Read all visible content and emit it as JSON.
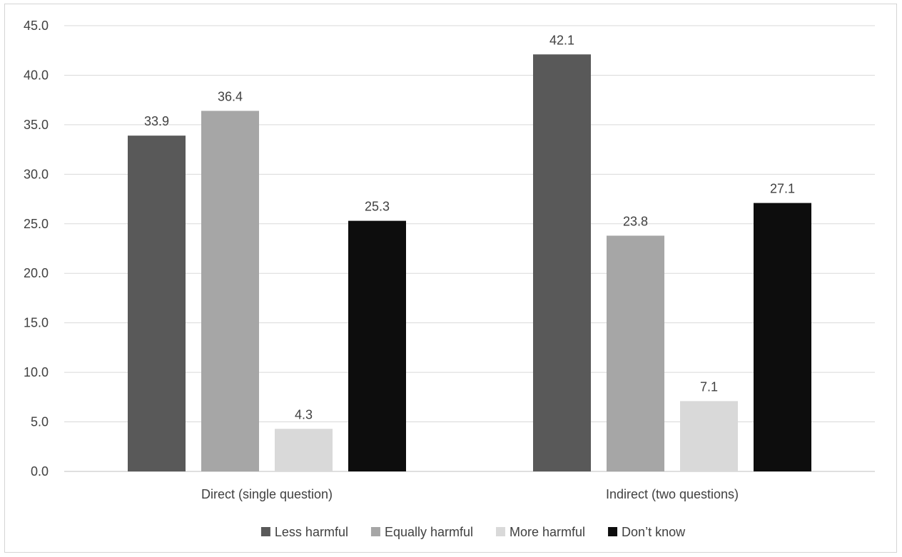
{
  "chart_data": {
    "type": "bar",
    "categories": [
      "Direct (single question)",
      "Indirect (two questions)"
    ],
    "series": [
      {
        "name": "Less harmful",
        "values": [
          33.9,
          42.1
        ],
        "color": "#595959"
      },
      {
        "name": "Equally harmful",
        "values": [
          36.4,
          23.8
        ],
        "color": "#a6a6a6"
      },
      {
        "name": "More harmful",
        "values": [
          4.3,
          7.1
        ],
        "color": "#d9d9d9"
      },
      {
        "name": "Don’t know",
        "values": [
          25.3,
          27.1
        ],
        "color": "#0d0d0d"
      }
    ],
    "y_ticks": [
      "0.0",
      "5.0",
      "10.0",
      "15.0",
      "20.0",
      "25.0",
      "30.0",
      "35.0",
      "40.0",
      "45.0"
    ],
    "ylim": [
      0,
      45
    ],
    "grid": true,
    "legend": "bottom",
    "title": "",
    "xlabel": "",
    "ylabel": ""
  }
}
